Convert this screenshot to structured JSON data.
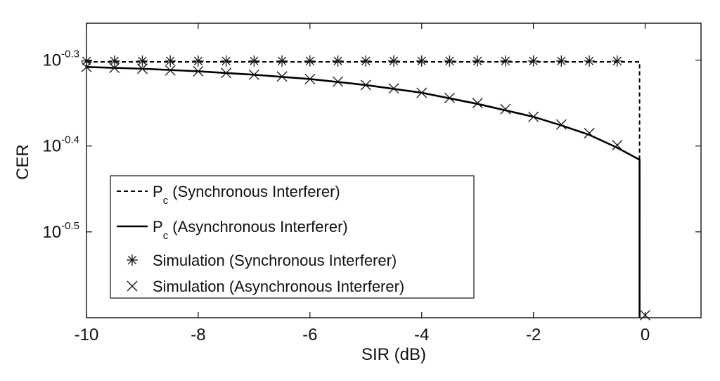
{
  "chart_data": {
    "type": "line",
    "title": "",
    "xlabel": "SIR (dB)",
    "ylabel": "CER",
    "xlim": [
      -10,
      1
    ],
    "ylim": [
      -0.6,
      -0.257
    ],
    "y_scale": "log10",
    "grid": false,
    "legend_position": "bottom-left",
    "x_ticks": [
      {
        "value": -10,
        "label": "-10"
      },
      {
        "value": -8,
        "label": "-8"
      },
      {
        "value": -6,
        "label": "-6"
      },
      {
        "value": -4,
        "label": "-4"
      },
      {
        "value": -2,
        "label": "-2"
      },
      {
        "value": 0,
        "label": "0"
      }
    ],
    "y_ticks": [
      {
        "value": -0.3,
        "base": "10",
        "exp": "-0.3"
      },
      {
        "value": -0.4,
        "base": "10",
        "exp": "-0.4"
      },
      {
        "value": -0.5,
        "base": "10",
        "exp": "-0.5"
      }
    ],
    "series": [
      {
        "name": "P",
        "name_sub": "c",
        "name_rest": " (Synchronous Interferer)",
        "style": "dashed",
        "color": "#000000",
        "x": [
          -10,
          -0.1,
          -0.1
        ],
        "y": [
          -0.302,
          -0.302,
          -0.6
        ]
      },
      {
        "name": "P",
        "name_sub": "c",
        "name_rest": " (Asynchronous Interferer)",
        "style": "solid",
        "color": "#000000",
        "x": [
          -10,
          -9,
          -8,
          -7,
          -6,
          -5,
          -4,
          -3,
          -2,
          -1.5,
          -1,
          -0.5,
          -0.1,
          -0.1
        ],
        "y": [
          -0.308,
          -0.31,
          -0.313,
          -0.317,
          -0.322,
          -0.329,
          -0.338,
          -0.351,
          -0.366,
          -0.376,
          -0.387,
          -0.402,
          -0.416,
          -0.6
        ]
      },
      {
        "name": "Simulation (Synchronous Interferer)",
        "style": "marker-asterisk",
        "color": "#000000",
        "x": [
          -10,
          -9.5,
          -9,
          -8.5,
          -8,
          -7.5,
          -7,
          -6.5,
          -6,
          -5.5,
          -5,
          -4.5,
          -4,
          -3.5,
          -3,
          -2.5,
          -2,
          -1.5,
          -1,
          -0.5
        ],
        "y": [
          -0.301,
          -0.301,
          -0.301,
          -0.301,
          -0.301,
          -0.301,
          -0.301,
          -0.301,
          -0.301,
          -0.301,
          -0.301,
          -0.301,
          -0.301,
          -0.301,
          -0.301,
          -0.301,
          -0.301,
          -0.301,
          -0.301,
          -0.301
        ]
      },
      {
        "name": "Simulation (Asynchronous Interferer)",
        "style": "marker-x",
        "color": "#000000",
        "x": [
          -10,
          -9.5,
          -9,
          -8.5,
          -8,
          -7.5,
          -7,
          -6.5,
          -6,
          -5.5,
          -5,
          -4.5,
          -4,
          -3.5,
          -3,
          -2.5,
          -2,
          -1.5,
          -1,
          -0.5,
          0
        ],
        "y": [
          -0.308,
          -0.309,
          -0.31,
          -0.312,
          -0.313,
          -0.315,
          -0.317,
          -0.319,
          -0.322,
          -0.325,
          -0.329,
          -0.333,
          -0.338,
          -0.344,
          -0.35,
          -0.357,
          -0.366,
          -0.375,
          -0.385,
          -0.399,
          -0.597
        ]
      }
    ]
  }
}
